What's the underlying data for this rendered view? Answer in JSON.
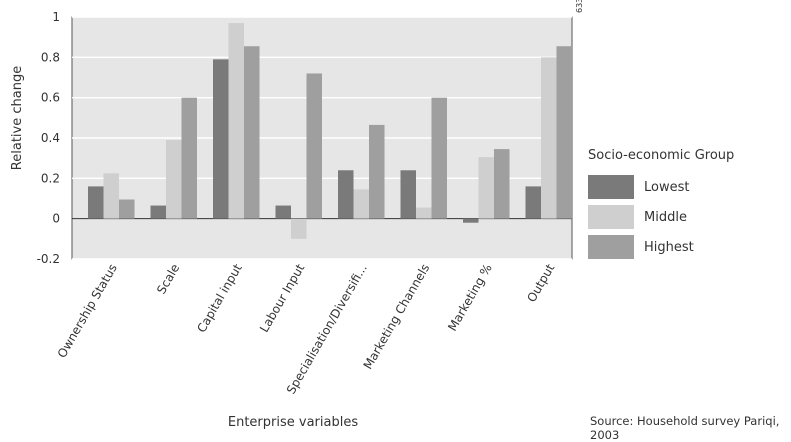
{
  "chart_data": {
    "type": "bar",
    "title": "",
    "xlabel": "Enterprise variables",
    "ylabel": "Relative change",
    "ylim": [
      -0.2,
      1
    ],
    "yticks": [
      "1",
      "0.8",
      "0.6",
      "0.4",
      "0.2",
      "0",
      "-0.2"
    ],
    "ytick_values": [
      1,
      0.8,
      0.6,
      0.4,
      0.2,
      0,
      -0.2
    ],
    "categories": [
      "Ownership Status",
      "Scale",
      "Capital input",
      "Labour Input",
      "Specialisation/Diversifi...",
      "Marketing Channels",
      "Marketing %",
      "Output"
    ],
    "series": [
      {
        "name": "Lowest",
        "color": "#7a7a7a",
        "values": [
          0.16,
          0.065,
          0.79,
          0.065,
          0.24,
          0.24,
          -0.02,
          0.16
        ]
      },
      {
        "name": "Middle",
        "color": "#cfcfcf",
        "values": [
          0.225,
          0.39,
          0.97,
          -0.1,
          0.145,
          0.055,
          0.305,
          0.8
        ]
      },
      {
        "name": "Highest",
        "color": "#9f9f9f",
        "values": [
          0.095,
          0.6,
          0.855,
          0.72,
          0.465,
          0.6,
          0.345,
          0.855
        ]
      }
    ],
    "grid": "horizontal",
    "plot_background": "#e6e6e6",
    "legend_title": "Socio-economic Group",
    "legend_position": "right"
  },
  "figure_id": "6336",
  "source": "Source: Household survey Pariqi, 2003"
}
